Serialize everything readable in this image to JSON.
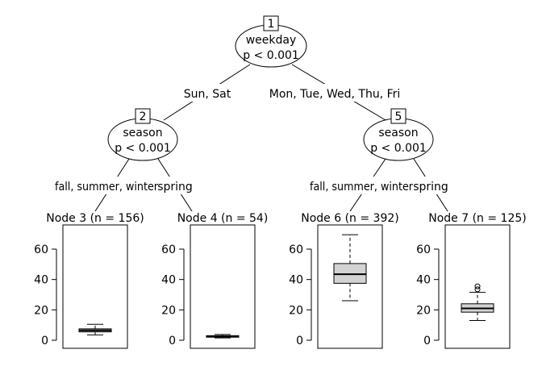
{
  "tree": {
    "inner_nodes": [
      {
        "id": "1",
        "variable": "weekday",
        "pvalue": "p < 0.001"
      },
      {
        "id": "2",
        "variable": "season",
        "pvalue": "p < 0.001"
      },
      {
        "id": "5",
        "variable": "season",
        "pvalue": "p < 0.001"
      }
    ],
    "edges": [
      {
        "label": "Sun, Sat"
      },
      {
        "label": "Mon, Tue, Wed, Thu, Fri"
      },
      {
        "label": "fall, summer, winter"
      },
      {
        "label": "spring"
      },
      {
        "label": "fall, summer, winter"
      },
      {
        "label": "spring"
      }
    ],
    "terminal_nodes": [
      {
        "title": "Node 3 (n = 156)"
      },
      {
        "title": "Node 4 (n = 54)"
      },
      {
        "title": "Node 6 (n = 392)"
      },
      {
        "title": "Node 7 (n = 125)"
      }
    ]
  },
  "chart_data": {
    "type": "boxplot",
    "ylim": [
      0,
      75
    ],
    "yticks": [
      "0",
      "20",
      "40",
      "60"
    ],
    "series": [
      {
        "node": "3",
        "whisker_low": 3.5,
        "q1": 5.5,
        "median": 6.5,
        "q3": 7.5,
        "whisker_high": 10.5,
        "outliers": []
      },
      {
        "node": "4",
        "whisker_low": 1.5,
        "q1": 2.0,
        "median": 2.5,
        "q3": 3.0,
        "whisker_high": 3.8,
        "outliers": []
      },
      {
        "node": "6",
        "whisker_low": 26,
        "q1": 37.5,
        "median": 43.5,
        "q3": 50.5,
        "whisker_high": 69.5,
        "outliers": []
      },
      {
        "node": "7",
        "whisker_low": 13,
        "q1": 18.5,
        "median": 21,
        "q3": 24,
        "whisker_high": 31.5,
        "outliers": [
          33.5,
          35.5
        ]
      }
    ]
  }
}
